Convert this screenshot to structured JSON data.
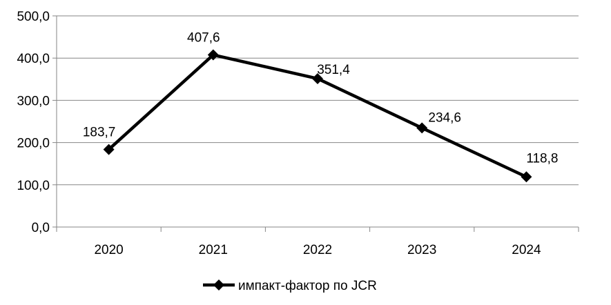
{
  "chart_data": {
    "type": "line",
    "categories": [
      "2020",
      "2021",
      "2022",
      "2023",
      "2024"
    ],
    "series": [
      {
        "name": "импакт-фактор по JCR",
        "values": [
          183.7,
          407.6,
          351.4,
          234.6,
          118.8
        ]
      }
    ],
    "data_labels": [
      "183,7",
      "407,6",
      "351,4",
      "234,6",
      "118,8"
    ],
    "y_ticks": [
      "0,0",
      "100,0",
      "200,0",
      "300,0",
      "400,0",
      "500,0"
    ],
    "ylim": [
      0,
      500
    ],
    "grid": true,
    "legend": "bottom",
    "marker": "diamond",
    "line_color": "#000000",
    "grid_color": "#868686"
  }
}
